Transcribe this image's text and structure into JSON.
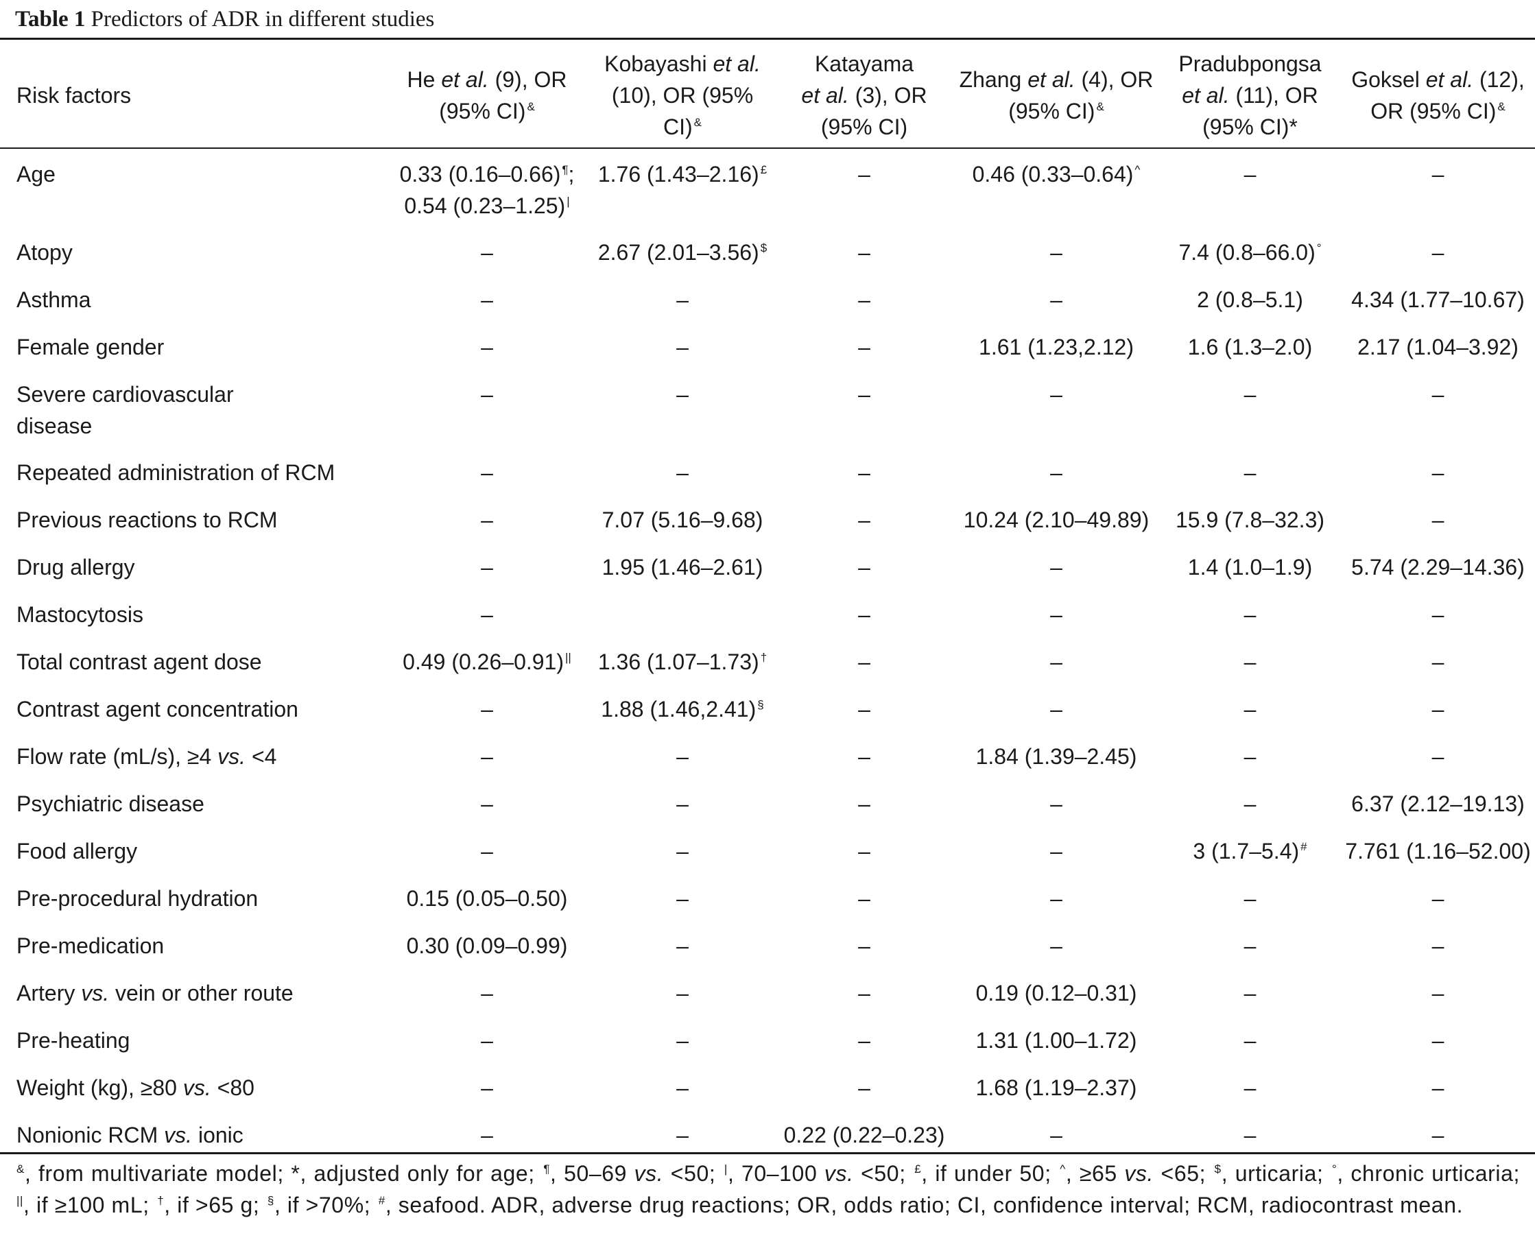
{
  "caption": {
    "label": "Table 1",
    "text": "Predictors of ADR in different studies"
  },
  "header": {
    "risk": "Risk factors",
    "c1a": "He ",
    "c1i": "et al.",
    "c1b": " (9), OR",
    "c1c": "(95% CI)",
    "c1s": "&",
    "c2a": "Kobayashi ",
    "c2i": "et al.",
    "c2b": "(10), OR (95% CI)",
    "c2s": "&",
    "c3a": "Katayama",
    "c3i": "et al.",
    "c3b": " (3), OR",
    "c3c": "(95% CI)",
    "c4a": "Zhang ",
    "c4i": "et al.",
    "c4b": " (4), OR",
    "c4c": "(95% CI)",
    "c4s": "&",
    "c5a": "Pradubpongsa",
    "c5i": "et al.",
    "c5b": " (11), OR",
    "c5c": "(95% CI)*",
    "c6a": "Goksel ",
    "c6i": "et al.",
    "c6b": " (12),",
    "c6c": "OR (95% CI)",
    "c6s": "&"
  },
  "rows": [
    {
      "label": "Age",
      "c1a": "0.33 (0.16–0.66)",
      "c1as": "¶",
      "c1sep": ";",
      "c1b": "0.54 (0.23–1.25)",
      "c1bs": "|",
      "c2": "1.76 (1.43–2.16)",
      "c2s": "£",
      "c3": "–",
      "c4": "0.46 (0.33–0.64)",
      "c4s": "^",
      "c5": "–",
      "c6": "–"
    },
    {
      "label": "Atopy",
      "c1": "–",
      "c2": "2.67 (2.01–3.56)",
      "c2s": "$",
      "c3": "–",
      "c4": "–",
      "c5": "7.4 (0.8–66.0)",
      "c5s": "°",
      "c6": "–"
    },
    {
      "label": "Asthma",
      "c1": "–",
      "c2": "–",
      "c3": "–",
      "c4": "–",
      "c5": "2 (0.8–5.1)",
      "c6": "4.34 (1.77–10.67)"
    },
    {
      "label": "Female gender",
      "c1": "–",
      "c2": "–",
      "c3": "–",
      "c4": "1.61 (1.23,2.12)",
      "c5": "1.6 (1.3–2.0)",
      "c6": "2.17 (1.04–3.92)"
    },
    {
      "label": "Severe cardiovascular disease",
      "c1": "–",
      "c2": "–",
      "c3": "–",
      "c4": "–",
      "c5": "–",
      "c6": "–"
    },
    {
      "label": "Repeated administration of RCM",
      "c1": "–",
      "c2": "–",
      "c3": "–",
      "c4": "–",
      "c5": "–",
      "c6": "–"
    },
    {
      "label": "Previous reactions to RCM",
      "c1": "–",
      "c2": "7.07 (5.16–9.68)",
      "c3": "–",
      "c4": "10.24 (2.10–49.89)",
      "c5": "15.9 (7.8–32.3)",
      "c6": "–"
    },
    {
      "label": "Drug allergy",
      "c1": "–",
      "c2": "1.95 (1.46–2.61)",
      "c3": "–",
      "c4": "–",
      "c5": "1.4 (1.0–1.9)",
      "c6": "5.74 (2.29–14.36)"
    },
    {
      "label": "Mastocytosis",
      "c1": "–",
      "c2": "",
      "c3": "–",
      "c4": "–",
      "c5": "–",
      "c6": "–"
    },
    {
      "label": "Total contrast agent dose",
      "c1": "0.49 (0.26–0.91)",
      "c1s": "||",
      "c2": "1.36 (1.07–1.73)",
      "c2s": "†",
      "c3": "–",
      "c4": "–",
      "c5": "–",
      "c6": "–"
    },
    {
      "label": "Contrast agent concentration",
      "c1": "–",
      "c2": "1.88 (1.46,2.41)",
      "c2s": "§",
      "c3": "–",
      "c4": "–",
      "c5": "–",
      "c6": "–"
    },
    {
      "label_a": "Flow rate (mL/s), ≥4 ",
      "label_i": "vs.",
      "label_b": " <4",
      "c1": "–",
      "c2": "–",
      "c3": "–",
      "c4": "1.84 (1.39–2.45)",
      "c5": "–",
      "c6": "–"
    },
    {
      "label": "Psychiatric disease",
      "c1": "–",
      "c2": "–",
      "c3": "–",
      "c4": "–",
      "c5": "–",
      "c6": "6.37 (2.12–19.13)"
    },
    {
      "label": "Food allergy",
      "c1": "–",
      "c2": "–",
      "c3": "–",
      "c4": "–",
      "c5": "3 (1.7–5.4)",
      "c5s": "#",
      "c6": "7.761 (1.16–52.00)"
    },
    {
      "label": "Pre-procedural hydration",
      "c1": "0.15 (0.05–0.50)",
      "c2": "–",
      "c3": "–",
      "c4": "–",
      "c5": "–",
      "c6": "–"
    },
    {
      "label": "Pre-medication",
      "c1": "0.30 (0.09–0.99)",
      "c2": "–",
      "c3": "–",
      "c4": "–",
      "c5": "–",
      "c6": "–"
    },
    {
      "label_a": "Artery ",
      "label_i": "vs.",
      "label_b": " vein or other route",
      "c1": "–",
      "c2": "–",
      "c3": "–",
      "c4": "0.19 (0.12–0.31)",
      "c5": "–",
      "c6": "–"
    },
    {
      "label": "Pre-heating",
      "c1": "–",
      "c2": "–",
      "c3": "–",
      "c4": "1.31 (1.00–1.72)",
      "c5": "–",
      "c6": "–"
    },
    {
      "label_a": "Weight (kg), ≥80 ",
      "label_i": "vs.",
      "label_b": " <80",
      "c1": "–",
      "c2": "–",
      "c3": "–",
      "c4": "1.68 (1.19–2.37)",
      "c5": "–",
      "c6": "–"
    },
    {
      "label_a": "Nonionic RCM ",
      "label_i": "vs.",
      "label_b": " ionic",
      "c1": "–",
      "c2": "–",
      "c3": "0.22 (0.22–0.23)",
      "c4": "–",
      "c5": "–",
      "c6": "–"
    }
  ],
  "footnote": {
    "s1": "&",
    "t1": ", from multivariate model; *, adjusted only for age; ",
    "s2": "¶",
    "t2": ", 50–69 ",
    "i2": "vs.",
    "t2b": " <50; ",
    "s3": "|",
    "t3": ", 70–100 ",
    "i3": "vs.",
    "t3b": " <50; ",
    "s4": "£",
    "t4": ", if under 50; ",
    "s5": "^",
    "t5": ", ≥65 ",
    "i5": "vs.",
    "t5b": " <65; ",
    "s6": "$",
    "t6": ", urticaria; ",
    "s7": "°",
    "t7": ", chronic urticaria; ",
    "s8": "||",
    "t8": ", if ≥100 mL; ",
    "s9": "†",
    "t9": ", if >65 g; ",
    "s10": "§",
    "t10": ", if >70%; ",
    "s11": "#",
    "t11": ", seafood. ADR, adverse drug reactions; OR, odds ratio; CI, confidence interval; RCM, radiocontrast mean."
  }
}
